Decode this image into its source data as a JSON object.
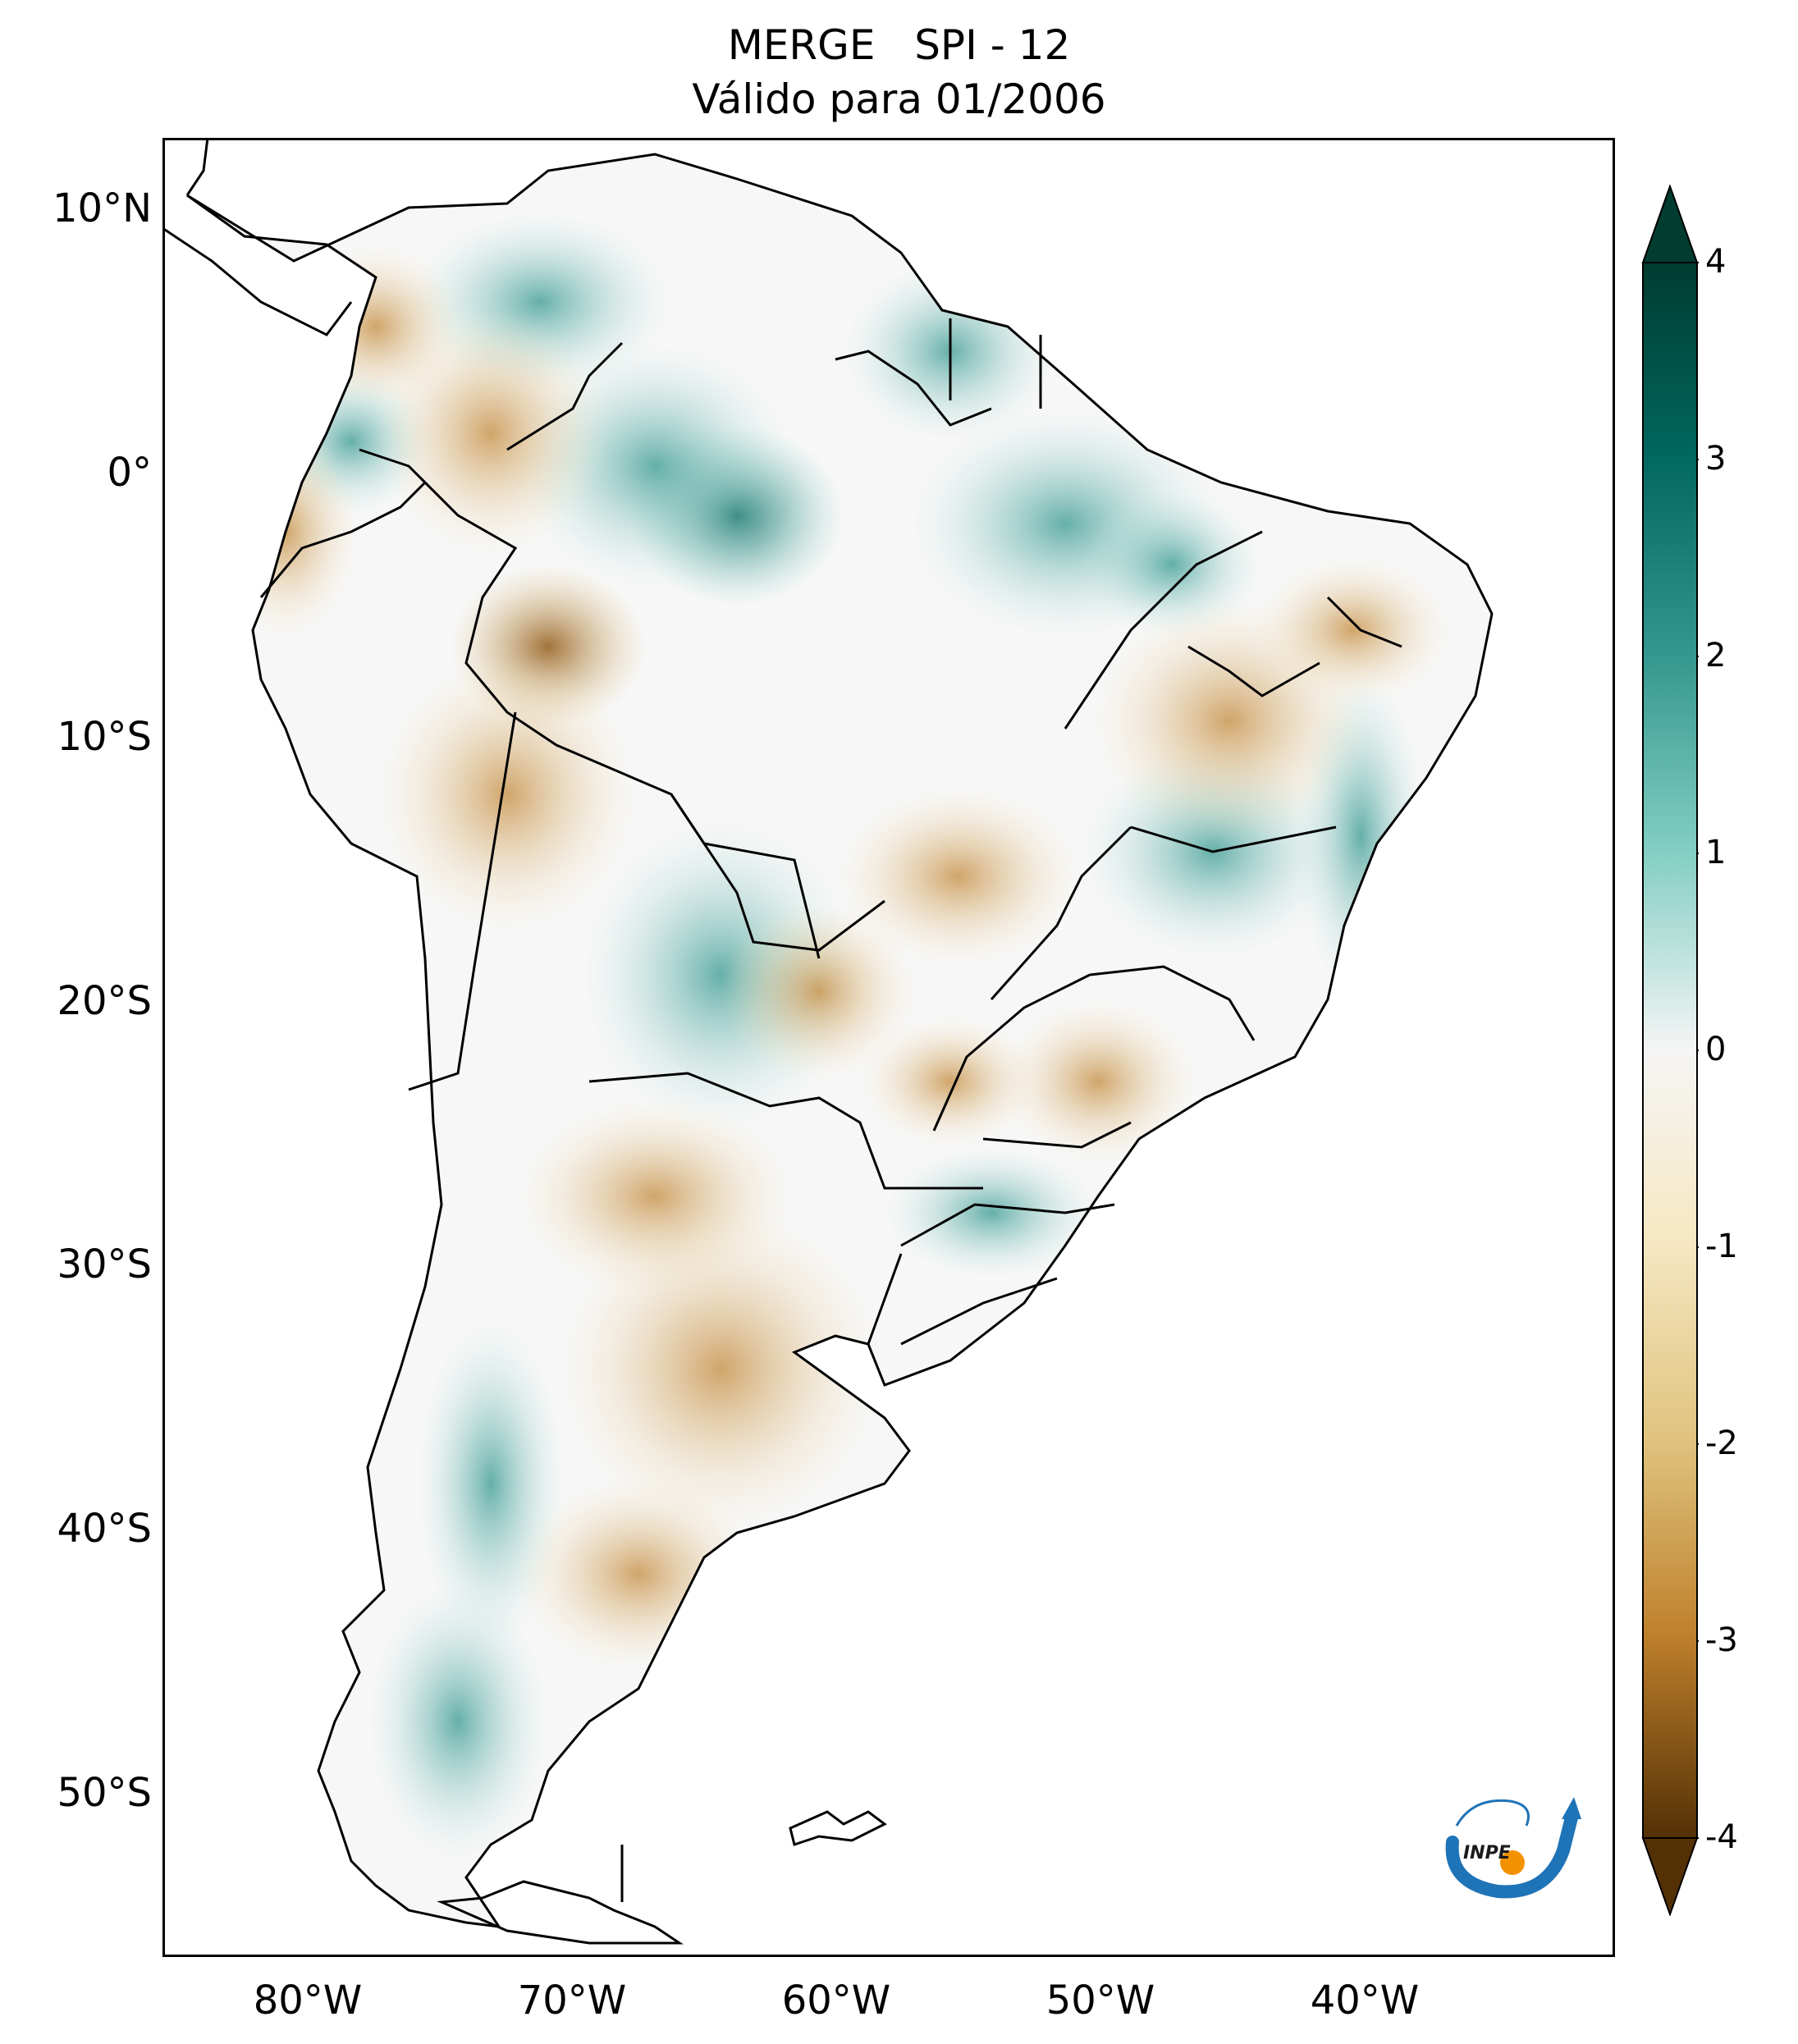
{
  "title": {
    "line1": "MERGE   SPI - 12",
    "line2": "Válido para 01/2006"
  },
  "map": {
    "lat_labels": [
      "10°N",
      "0°",
      "10°S",
      "20°S",
      "30°S",
      "40°S",
      "50°S"
    ],
    "lon_labels": [
      "80°W",
      "70°W",
      "60°W",
      "50°W",
      "40°W"
    ],
    "lon_range": [
      -85,
      -30
    ],
    "lat_range": [
      -56,
      13
    ]
  },
  "colorbar": {
    "ticks": [
      "4",
      "3",
      "2",
      "1",
      "0",
      "-1",
      "-2",
      "-3",
      "-4"
    ],
    "range": [
      -4,
      4
    ],
    "extend": "both",
    "colormap": "BrBG",
    "colors": {
      "min": "#543005",
      "mid": "#f5f5f5",
      "max": "#003c30"
    }
  },
  "logo": {
    "text": "INPE",
    "colors": {
      "blue": "#1f73b7",
      "orange": "#f39200"
    }
  }
}
